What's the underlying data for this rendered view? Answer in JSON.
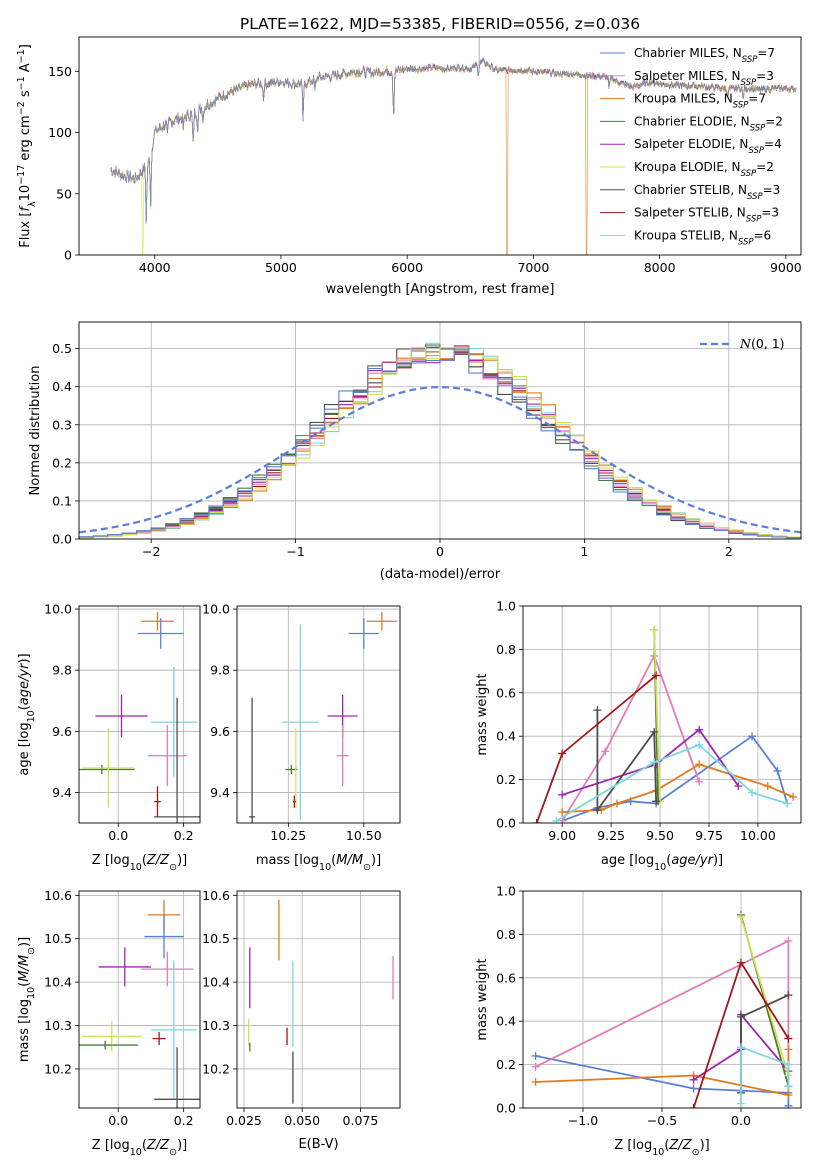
{
  "figure": {
    "title": "PLATE=1622, MJD=53385, FIBERID=0556, z=0.036"
  },
  "models": [
    {
      "name": "Chabrier MILES",
      "nssp": 7,
      "color": "#5b7fd6"
    },
    {
      "name": "Salpeter MILES",
      "nssp": 3,
      "color": "#e37cb7"
    },
    {
      "name": "Kroupa MILES",
      "nssp": 7,
      "color": "#e07a1f"
    },
    {
      "name": "Chabrier ELODIE",
      "nssp": 2,
      "color": "#4c7a3c"
    },
    {
      "name": "Salpeter ELODIE",
      "nssp": 4,
      "color": "#9c27b0"
    },
    {
      "name": "Kroupa ELODIE",
      "nssp": 2,
      "color": "#d4e157"
    },
    {
      "name": "Chabrier STELIB",
      "nssp": 3,
      "color": "#4d4d4d"
    },
    {
      "name": "Salpeter STELIB",
      "nssp": 3,
      "color": "#a01818"
    },
    {
      "name": "Kroupa STELIB",
      "nssp": 6,
      "color": "#7ed6df"
    }
  ],
  "chart_data": [
    {
      "id": "spectrum",
      "type": "line",
      "xlabel": "wavelength [Angstrom, rest frame]",
      "ylabel": "Flux [f_λ 10^-17 erg cm^-2 s^-1 A^-1]",
      "xlim": [
        3400,
        9120
      ],
      "ylim": [
        0,
        178
      ],
      "xticks": [
        4000,
        5000,
        6000,
        7000,
        8000,
        9000
      ],
      "yticks": [
        0,
        50,
        100,
        150
      ],
      "grid": false,
      "legend": "top-right",
      "continuum": [
        [
          3650,
          70
        ],
        [
          3750,
          65
        ],
        [
          3850,
          62
        ],
        [
          3950,
          75
        ],
        [
          4000,
          100
        ],
        [
          4100,
          108
        ],
        [
          4200,
          112
        ],
        [
          4300,
          115
        ],
        [
          4400,
          122
        ],
        [
          4500,
          128
        ],
        [
          4600,
          133
        ],
        [
          4700,
          137
        ],
        [
          4800,
          140
        ],
        [
          4900,
          140
        ],
        [
          5000,
          142
        ],
        [
          5100,
          140
        ],
        [
          5200,
          140
        ],
        [
          5300,
          145
        ],
        [
          5400,
          146
        ],
        [
          5500,
          148
        ],
        [
          5600,
          150
        ],
        [
          5700,
          149
        ],
        [
          5800,
          150
        ],
        [
          5900,
          150
        ],
        [
          6000,
          152
        ],
        [
          6100,
          152
        ],
        [
          6200,
          153
        ],
        [
          6300,
          152
        ],
        [
          6400,
          153
        ],
        [
          6500,
          152
        ],
        [
          6600,
          158
        ],
        [
          6700,
          151
        ],
        [
          6800,
          151
        ],
        [
          6900,
          151
        ],
        [
          7000,
          150
        ],
        [
          7100,
          149
        ],
        [
          7200,
          148
        ],
        [
          7300,
          148
        ],
        [
          7400,
          147
        ],
        [
          7500,
          146
        ],
        [
          7600,
          145
        ],
        [
          7700,
          140
        ],
        [
          7800,
          137
        ],
        [
          7900,
          141
        ],
        [
          8000,
          140
        ],
        [
          8100,
          139
        ],
        [
          8200,
          138
        ],
        [
          8300,
          138
        ],
        [
          8400,
          137
        ],
        [
          8500,
          136
        ],
        [
          8600,
          136
        ],
        [
          8700,
          136
        ],
        [
          8800,
          135
        ],
        [
          8900,
          136
        ],
        [
          9000,
          136
        ],
        [
          9080,
          135
        ]
      ],
      "absorption_lines": [
        [
          3933,
          45
        ],
        [
          3968,
          42
        ],
        [
          4101,
          12
        ],
        [
          4227,
          10
        ],
        [
          4304,
          25
        ],
        [
          4340,
          12
        ],
        [
          4383,
          10
        ],
        [
          4861,
          12
        ],
        [
          5175,
          30
        ],
        [
          5270,
          10
        ],
        [
          5892,
          35
        ],
        [
          6563,
          8
        ],
        [
          7600,
          10
        ],
        [
          8540,
          8
        ],
        [
          8662,
          8
        ]
      ],
      "dropouts": [
        {
          "model": "Kroupa ELODIE",
          "x": 3905
        },
        {
          "model": "Kroupa MILES",
          "x": 6790
        },
        {
          "model": "Kroupa MILES",
          "x": 7420
        }
      ],
      "spike": {
        "x": 6570,
        "y": 178
      }
    },
    {
      "id": "residual_hist",
      "type": "histogram",
      "xlabel": "(data-model)/error",
      "ylabel": "Normed distribution",
      "xlim": [
        -2.5,
        2.5
      ],
      "ylim": [
        0,
        0.57
      ],
      "xticks": [
        -2,
        -1,
        0,
        1,
        2
      ],
      "yticks": [
        0.0,
        0.1,
        0.2,
        0.3,
        0.4,
        0.5
      ],
      "grid": true,
      "legend": "top-right",
      "reference_curve": {
        "name": "N(0,1)",
        "mu": 0,
        "sigma": 1,
        "color": "#5b7fd6"
      },
      "bin_width": 0.1,
      "peak": 0.49
    },
    {
      "id": "age_vs_Z",
      "type": "errorbar",
      "xlabel": "Z [log10(Z/Z☉)]",
      "ylabel": "age [log10(age/yr)]",
      "xlim": [
        -0.12,
        0.25
      ],
      "ylim": [
        9.3,
        10.01
      ],
      "xticks": [
        0.0,
        0.2
      ],
      "yticks": [
        9.4,
        9.6,
        9.8,
        10.0
      ],
      "grid": true,
      "points": [
        {
          "model": "Kroupa MILES",
          "x": 0.12,
          "y": 9.96,
          "xerr": 0.05,
          "yerr": 0.03
        },
        {
          "model": "Chabrier MILES",
          "x": 0.13,
          "y": 9.92,
          "xerr": 0.07,
          "yerr": 0.05
        },
        {
          "model": "Salpeter ELODIE",
          "x": 0.01,
          "y": 9.65,
          "xerr": 0.08,
          "yerr": 0.07
        },
        {
          "model": "Kroupa STELIB",
          "x": 0.17,
          "y": 9.63,
          "xerr": 0.07,
          "yerr": 0.18
        },
        {
          "model": "Salpeter MILES",
          "x": 0.15,
          "y": 9.52,
          "xerr": 0.06,
          "yerr": 0.1
        },
        {
          "model": "Chabrier ELODIE",
          "x": -0.05,
          "y": 9.475,
          "xerr": 0.1,
          "yerr": 0.015
        },
        {
          "model": "Kroupa ELODIE",
          "x": -0.03,
          "y": 9.48,
          "xerr": 0.08,
          "yerr": 0.13
        },
        {
          "model": "Chabrier STELIB",
          "x": 0.18,
          "y": 9.32,
          "xerr": 0.07,
          "yerr": 0.39
        },
        {
          "model": "Salpeter STELIB",
          "x": 0.12,
          "y": 9.37,
          "xerr": 0.01,
          "yerr": 0.05
        }
      ]
    },
    {
      "id": "age_vs_mass",
      "type": "errorbar",
      "xlabel": "mass [log10(M/M☉)]",
      "ylabel": "",
      "xlim": [
        10.08,
        10.62
      ],
      "ylim": [
        9.3,
        10.01
      ],
      "xticks": [
        10.25,
        10.5
      ],
      "yticks": [
        9.4,
        9.6,
        9.8,
        10.0
      ],
      "grid": true,
      "points": [
        {
          "model": "Kroupa MILES",
          "x": 10.56,
          "y": 9.96,
          "xerr": 0.05,
          "yerr": 0.03
        },
        {
          "model": "Chabrier MILES",
          "x": 10.5,
          "y": 9.92,
          "xerr": 0.05,
          "yerr": 0.05
        },
        {
          "model": "Salpeter ELODIE",
          "x": 10.43,
          "y": 9.65,
          "xerr": 0.05,
          "yerr": 0.07
        },
        {
          "model": "Kroupa STELIB",
          "x": 10.29,
          "y": 9.63,
          "xerr": 0.06,
          "yerr": 0.32
        },
        {
          "model": "Salpeter MILES",
          "x": 10.43,
          "y": 9.52,
          "xerr": 0.02,
          "yerr": 0.1
        },
        {
          "model": "Chabrier ELODIE",
          "x": 10.26,
          "y": 9.475,
          "xerr": 0.02,
          "yerr": 0.015
        },
        {
          "model": "Kroupa ELODIE",
          "x": 10.275,
          "y": 9.48,
          "xerr": 0.005,
          "yerr": 0.13
        },
        {
          "model": "Chabrier STELIB",
          "x": 10.13,
          "y": 9.32,
          "xerr": 0.01,
          "yerr": 0.39
        },
        {
          "model": "Salpeter STELIB",
          "x": 10.27,
          "y": 9.37,
          "xerr": 0.005,
          "yerr": 0.02
        }
      ]
    },
    {
      "id": "massweight_vs_age",
      "type": "line",
      "xlabel": "age [log10(age/yr)]",
      "ylabel": "mass weight",
      "xlim": [
        8.8,
        10.22
      ],
      "ylim": [
        0,
        1.0
      ],
      "xticks": [
        9.0,
        9.25,
        9.5,
        9.75,
        10.0
      ],
      "yticks": [
        0.0,
        0.2,
        0.4,
        0.6,
        0.8,
        1.0
      ],
      "grid": true,
      "series": [
        {
          "model": "Chabrier MILES",
          "x": [
            9.0,
            9.18,
            9.35,
            9.48,
            9.97,
            10.1,
            10.15
          ],
          "y": [
            0.01,
            0.07,
            0.1,
            0.09,
            0.4,
            0.24,
            0.09
          ]
        },
        {
          "model": "Salpeter MILES",
          "x": [
            9.0,
            9.22,
            9.47,
            9.7
          ],
          "y": [
            0.01,
            0.33,
            0.77,
            0.19
          ]
        },
        {
          "model": "Kroupa MILES",
          "x": [
            9.0,
            9.2,
            9.28,
            9.48,
            9.7,
            10.05,
            10.18
          ],
          "y": [
            0.05,
            0.06,
            0.09,
            0.15,
            0.27,
            0.17,
            0.12
          ]
        },
        {
          "model": "Chabrier ELODIE",
          "x": [
            9.47,
            9.49
          ],
          "y": [
            0.89,
            0.1
          ]
        },
        {
          "model": "Salpeter ELODIE",
          "x": [
            9.0,
            9.48,
            9.7,
            9.9
          ],
          "y": [
            0.13,
            0.27,
            0.43,
            0.17
          ]
        },
        {
          "model": "Kroupa ELODIE",
          "x": [
            9.47,
            9.5
          ],
          "y": [
            0.89,
            0.1
          ]
        },
        {
          "model": "Chabrier STELIB",
          "x": [
            9.18,
            9.18,
            9.47,
            9.48
          ],
          "y": [
            0.52,
            0.06,
            0.42,
            0.1
          ]
        },
        {
          "model": "Salpeter STELIB",
          "x": [
            8.87,
            9.0,
            9.48
          ],
          "y": [
            0.0,
            0.32,
            0.68
          ]
        },
        {
          "model": "Kroupa STELIB",
          "x": [
            8.97,
            9.47,
            9.7,
            9.97,
            10.15
          ],
          "y": [
            0.01,
            0.28,
            0.36,
            0.14,
            0.09
          ]
        }
      ]
    },
    {
      "id": "mass_vs_Z",
      "type": "errorbar",
      "xlabel": "Z [log10(Z/Z☉)]",
      "ylabel": "mass [log10(M/M☉)]",
      "xlim": [
        -0.12,
        0.25
      ],
      "ylim": [
        10.11,
        10.61
      ],
      "xticks": [
        0.0,
        0.2
      ],
      "yticks": [
        10.2,
        10.3,
        10.4,
        10.5,
        10.6
      ],
      "grid": true,
      "points": [
        {
          "model": "Kroupa MILES",
          "x": 0.14,
          "y": 10.555,
          "xerr": 0.05,
          "yerr": 0.035
        },
        {
          "model": "Chabrier MILES",
          "x": 0.14,
          "y": 10.505,
          "xerr": 0.06,
          "yerr": 0.05
        },
        {
          "model": "Salpeter ELODIE",
          "x": 0.02,
          "y": 10.435,
          "xerr": 0.08,
          "yerr": 0.045
        },
        {
          "model": "Salpeter MILES",
          "x": 0.15,
          "y": 10.43,
          "xerr": 0.08,
          "yerr": 0.04
        },
        {
          "model": "Kroupa STELIB",
          "x": 0.17,
          "y": 10.29,
          "xerr": 0.07,
          "yerr": 0.16
        },
        {
          "model": "Kroupa ELODIE",
          "x": -0.02,
          "y": 10.275,
          "xerr": 0.09,
          "yerr": 0.035
        },
        {
          "model": "Salpeter STELIB",
          "x": 0.125,
          "y": 10.27,
          "xerr": 0.02,
          "yerr": 0.015
        },
        {
          "model": "Chabrier ELODIE",
          "x": -0.04,
          "y": 10.255,
          "xerr": 0.1,
          "yerr": 0.01
        },
        {
          "model": "Chabrier STELIB",
          "x": 0.18,
          "y": 10.13,
          "xerr": 0.07,
          "yerr": 0.12
        }
      ]
    },
    {
      "id": "mass_vs_ebv",
      "type": "errorbar",
      "xlabel": "E(B-V)",
      "ylabel": "",
      "xlim": [
        0.022,
        0.092
      ],
      "ylim": [
        10.11,
        10.61
      ],
      "xticks": [
        0.025,
        0.05,
        0.075
      ],
      "yticks": [
        10.2,
        10.3,
        10.4,
        10.5,
        10.6
      ],
      "grid": true,
      "points": [
        {
          "model": "Kroupa MILES",
          "x": 0.04,
          "y": 10.52,
          "xerr": 0.0,
          "yerr": 0.07
        },
        {
          "model": "Salpeter ELODIE",
          "x": 0.0275,
          "y": 10.41,
          "xerr": 0.0,
          "yerr": 0.07
        },
        {
          "model": "Salpeter MILES",
          "x": 0.089,
          "y": 10.41,
          "xerr": 0.0,
          "yerr": 0.05
        },
        {
          "model": "Kroupa STELIB",
          "x": 0.046,
          "y": 10.35,
          "xerr": 0.0,
          "yerr": 0.1
        },
        {
          "model": "Kroupa ELODIE",
          "x": 0.027,
          "y": 10.285,
          "xerr": 0.0,
          "yerr": 0.03
        },
        {
          "model": "Salpeter STELIB",
          "x": 0.0435,
          "y": 10.275,
          "xerr": 0.0,
          "yerr": 0.02
        },
        {
          "model": "Chabrier ELODIE",
          "x": 0.0275,
          "y": 10.25,
          "xerr": 0.0,
          "yerr": 0.01
        },
        {
          "model": "Chabrier STELIB",
          "x": 0.046,
          "y": 10.18,
          "xerr": 0.0,
          "yerr": 0.06
        }
      ]
    },
    {
      "id": "massweight_vs_Z",
      "type": "line",
      "xlabel": "Z [log10(Z/Z☉)]",
      "ylabel": "mass weight",
      "xlim": [
        -1.38,
        0.38
      ],
      "ylim": [
        0,
        1.0
      ],
      "xticks": [
        -1.0,
        -0.5,
        0.0
      ],
      "yticks": [
        0.0,
        0.2,
        0.4,
        0.6,
        0.8,
        1.0
      ],
      "grid": true,
      "series": [
        {
          "model": "Chabrier MILES",
          "x": [
            -1.3,
            -0.3,
            0.3,
            0.3
          ],
          "y": [
            0.24,
            0.09,
            0.07,
            0.01
          ]
        },
        {
          "model": "Salpeter MILES",
          "x": [
            -1.3,
            0.3,
            0.3
          ],
          "y": [
            0.19,
            0.77,
            0.1
          ]
        },
        {
          "model": "Kroupa MILES",
          "x": [
            -1.3,
            -0.3,
            0.3,
            0.3
          ],
          "y": [
            0.12,
            0.15,
            0.06,
            0.27
          ]
        },
        {
          "model": "Chabrier ELODIE",
          "x": [
            0.0,
            0.3
          ],
          "y": [
            0.89,
            0.1
          ]
        },
        {
          "model": "Salpeter ELODIE",
          "x": [
            -0.3,
            0.0,
            0.0,
            0.3
          ],
          "y": [
            0.13,
            0.27,
            0.43,
            0.17
          ]
        },
        {
          "model": "Kroupa ELODIE",
          "x": [
            0.0,
            0.3
          ],
          "y": [
            0.88,
            0.15
          ]
        },
        {
          "model": "Chabrier STELIB",
          "x": [
            0.0,
            0.0,
            0.3
          ],
          "y": [
            0.07,
            0.42,
            0.52
          ]
        },
        {
          "model": "Salpeter STELIB",
          "x": [
            -0.3,
            0.0,
            0.3
          ],
          "y": [
            0.0,
            0.67,
            0.32
          ]
        },
        {
          "model": "Kroupa STELIB",
          "x": [
            0.0,
            0.0,
            0.3,
            0.3
          ],
          "y": [
            0.02,
            0.28,
            0.2,
            0.1
          ]
        }
      ]
    }
  ]
}
